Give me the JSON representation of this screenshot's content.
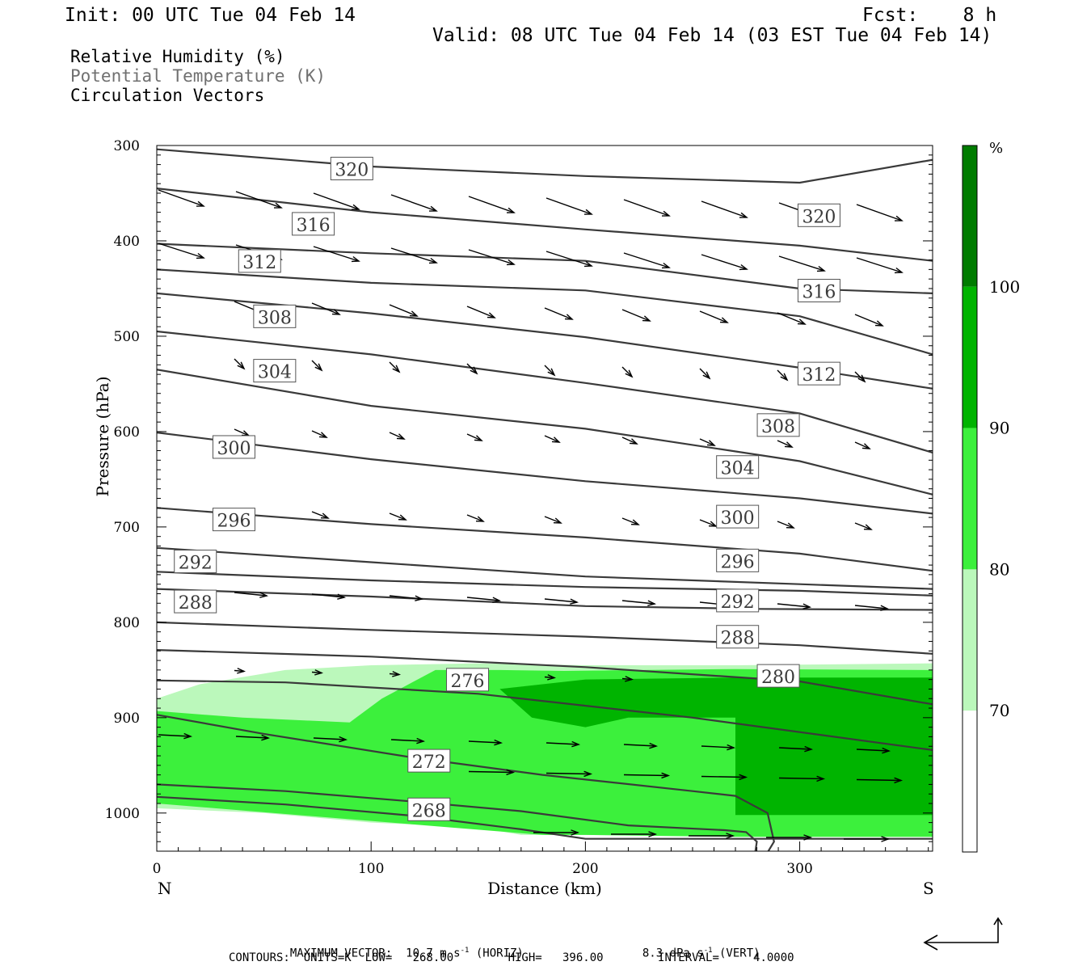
{
  "header": {
    "init": "Init: 00 UTC Tue 04 Feb 14",
    "fcst": "Fcst:    8 h",
    "valid": "Valid: 08 UTC Tue 04 Feb 14 (03 EST Tue 04 Feb 14)"
  },
  "legend_titles": {
    "rh": "Relative Humidity (%)",
    "theta": "Potential Temperature (K)",
    "vectors": "Circulation Vectors"
  },
  "colors": {
    "rh_70_80": "#bbf8bb",
    "rh_80_90": "#3cf03c",
    "rh_90_100": "#00b400",
    "rh_100_plus": "#007c00",
    "contour": "#3a3a3a",
    "grey_text": "#707070"
  },
  "chart_data": {
    "type": "cross-section",
    "xlabel": "Distance (km)",
    "ylabel": "Pressure (hPa)",
    "x_ticks": [
      "0",
      "100",
      "200",
      "300"
    ],
    "y_ticks": [
      "300",
      "400",
      "500",
      "600",
      "700",
      "800",
      "900",
      "1000"
    ],
    "xlim": [
      0,
      362
    ],
    "ylim": [
      300,
      1040
    ],
    "y_axis": "pressure, increasing downward",
    "left_end_label": "N",
    "right_end_label": "S",
    "colorbar": {
      "unit": "%",
      "levels": [
        "70",
        "80",
        "90",
        "100"
      ],
      "colors": [
        "#ffffff",
        "#bbf8bb",
        "#3cf03c",
        "#00b400",
        "#007c00"
      ]
    },
    "theta_contours": [
      {
        "label": "268",
        "x": [
          0,
          60,
          120,
          170,
          200,
          362
        ],
        "y": [
          983,
          991,
          1003,
          1017,
          1027,
          1027
        ]
      },
      {
        "label": "272",
        "x": [
          0,
          60,
          120,
          170,
          220,
          265,
          275,
          280,
          278,
          274
        ],
        "y": [
          970,
          977,
          988,
          998,
          1013,
          1018,
          1020,
          1030,
          1060,
          1070
        ]
      },
      {
        "label": "272",
        "x": [
          0,
          50,
          120,
          180,
          250,
          270,
          285,
          288,
          280
        ],
        "y": [
          897,
          917,
          942,
          960,
          977,
          982,
          1000,
          1030,
          1060
        ]
      },
      {
        "label": "276",
        "x": [
          0,
          60,
          150,
          250,
          362
        ],
        "y": [
          861,
          863,
          875,
          900,
          934
        ]
      },
      {
        "label": "280",
        "x": [
          0,
          100,
          200,
          300,
          362
        ],
        "y": [
          829,
          836,
          847,
          862,
          886
        ]
      },
      {
        "label": "288",
        "x": [
          0,
          100,
          200,
          300,
          362
        ],
        "y": [
          800,
          808,
          815,
          824,
          833
        ]
      },
      {
        "label": "292",
        "x": [
          0,
          100,
          200,
          280,
          362
        ],
        "y": [
          765,
          773,
          783,
          786,
          787
        ]
      },
      {
        "label": "296",
        "x": [
          0,
          100,
          200,
          300,
          362
        ],
        "y": [
          747,
          756,
          763,
          767,
          772
        ]
      },
      {
        "label": "300",
        "x": [
          0,
          100,
          200,
          300,
          362
        ],
        "y": [
          722,
          737,
          752,
          760,
          765
        ]
      },
      {
        "label": "304",
        "x": [
          0,
          100,
          200,
          300,
          362
        ],
        "y": [
          680,
          697,
          711,
          728,
          746
        ]
      },
      {
        "label": "308",
        "x": [
          0,
          100,
          200,
          300,
          362
        ],
        "y": [
          601,
          629,
          652,
          670,
          686
        ]
      },
      {
        "label": "312",
        "x": [
          0,
          100,
          200,
          300,
          362
        ],
        "y": [
          535,
          573,
          597,
          631,
          666
        ]
      },
      {
        "label": "316",
        "x": [
          0,
          100,
          200,
          300,
          362
        ],
        "y": [
          495,
          519,
          549,
          581,
          622
        ]
      },
      {
        "label": "320",
        "x": [
          0,
          100,
          200,
          300,
          362
        ],
        "y": [
          455,
          476,
          501,
          533,
          555
        ]
      },
      {
        "label": "",
        "x": [
          0,
          100,
          200,
          300,
          362
        ],
        "y": [
          430,
          444,
          452,
          479,
          519
        ]
      },
      {
        "label": "",
        "x": [
          0,
          100,
          200,
          300,
          362
        ],
        "y": [
          403,
          413,
          421,
          450,
          455
        ]
      },
      {
        "label": "",
        "x": [
          0,
          100,
          200,
          300,
          362
        ],
        "y": [
          345,
          370,
          388,
          405,
          421
        ]
      },
      {
        "label": "",
        "x": [
          0,
          100,
          200,
          300,
          362
        ],
        "y": [
          304,
          322,
          332,
          339,
          315
        ]
      }
    ],
    "contour_labels": [
      {
        "text": "320",
        "x": 91,
        "y": 325
      },
      {
        "text": "320",
        "x": 309,
        "y": 374
      },
      {
        "text": "316",
        "x": 73,
        "y": 383
      },
      {
        "text": "316",
        "x": 309,
        "y": 453
      },
      {
        "text": "312",
        "x": 48,
        "y": 422
      },
      {
        "text": "312",
        "x": 309,
        "y": 540
      },
      {
        "text": "308",
        "x": 55,
        "y": 480
      },
      {
        "text": "308",
        "x": 290,
        "y": 594
      },
      {
        "text": "304",
        "x": 55,
        "y": 537
      },
      {
        "text": "304",
        "x": 271,
        "y": 638
      },
      {
        "text": "300",
        "x": 36,
        "y": 617
      },
      {
        "text": "300",
        "x": 271,
        "y": 690
      },
      {
        "text": "296",
        "x": 36,
        "y": 693
      },
      {
        "text": "296",
        "x": 271,
        "y": 736
      },
      {
        "text": "292",
        "x": 18,
        "y": 737
      },
      {
        "text": "292",
        "x": 271,
        "y": 778
      },
      {
        "text": "288",
        "x": 18,
        "y": 779
      },
      {
        "text": "288",
        "x": 271,
        "y": 816
      },
      {
        "text": "276",
        "x": 145,
        "y": 861
      },
      {
        "text": "280",
        "x": 290,
        "y": 857
      },
      {
        "text": "272",
        "x": 127,
        "y": 946
      },
      {
        "text": "268",
        "x": 127,
        "y": 997
      }
    ],
    "rh_regions": [
      {
        "level": "70",
        "x": [
          0,
          20,
          60,
          100,
          150,
          200,
          270,
          362,
          362,
          270,
          200,
          170,
          150,
          100,
          50,
          0
        ],
        "y": [
          880,
          865,
          850,
          845,
          843,
          845,
          845,
          843,
          1025,
          1025,
          1023,
          1023,
          1015,
          1010,
          1000,
          995
        ]
      },
      {
        "level": "80",
        "x": [
          0,
          40,
          90,
          105,
          130,
          160,
          190,
          270,
          362,
          362,
          270,
          200,
          180,
          0
        ],
        "y": [
          893,
          900,
          905,
          880,
          850,
          850,
          851,
          849,
          850,
          1025,
          1025,
          1023,
          1023,
          990
        ]
      },
      {
        "level": "90",
        "x": [
          160,
          200,
          270,
          362,
          362,
          270,
          270,
          220,
          200,
          175
        ],
        "y": [
          870,
          860,
          858,
          858,
          1002,
          1002,
          900,
          900,
          910,
          900
        ]
      }
    ],
    "vectors_note": "circulation vectors drawn as arrows"
  },
  "footer": {
    "max_vector": "MAXIMUM VECTOR:  10.7 m s",
    "max_horiz": "(HORIZ)",
    "max_vert": "8.3 dPa s",
    "max_vert_tail": "(VERT)",
    "contours_line": "CONTOURS:  UNITS=K  LOW=   268.00        HIGH=   396.00        INTERVAL=     4.0000"
  }
}
